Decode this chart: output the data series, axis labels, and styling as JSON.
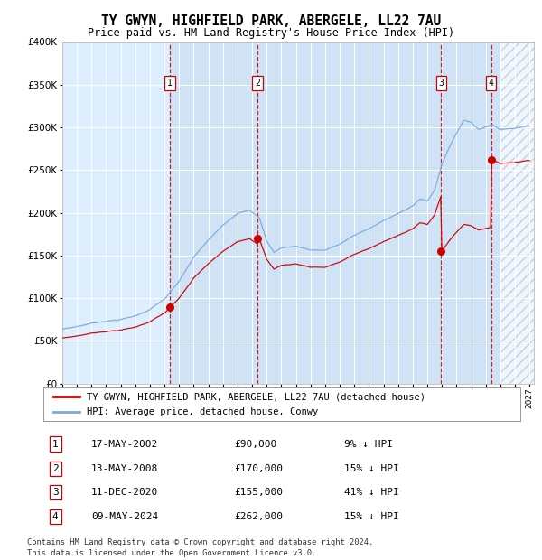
{
  "title": "TY GWYN, HIGHFIELD PARK, ABERGELE, LL22 7AU",
  "subtitle": "Price paid vs. HM Land Registry's House Price Index (HPI)",
  "hpi_color": "#7aaadd",
  "price_color": "#cc0000",
  "bg_color": "#ddeeff",
  "bg_band_color": "#c8ddf0",
  "ylim": [
    0,
    400000
  ],
  "yticks": [
    0,
    50000,
    100000,
    150000,
    200000,
    250000,
    300000,
    350000,
    400000
  ],
  "legend_label_price": "TY GWYN, HIGHFIELD PARK, ABERGELE, LL22 7AU (detached house)",
  "legend_label_hpi": "HPI: Average price, detached house, Conwy",
  "transactions": [
    {
      "num": 1,
      "date": "17-MAY-2002",
      "price": 90000,
      "pct": "9%",
      "year": 2002.37
    },
    {
      "num": 2,
      "date": "13-MAY-2008",
      "price": 170000,
      "pct": "15%",
      "year": 2008.37
    },
    {
      "num": 3,
      "date": "11-DEC-2020",
      "price": 155000,
      "pct": "41%",
      "year": 2020.95
    },
    {
      "num": 4,
      "date": "09-MAY-2024",
      "price": 262000,
      "pct": "15%",
      "year": 2024.37
    }
  ],
  "xmin": 1995,
  "xmax": 2027.3,
  "hatch_start": 2025.0,
  "footnote1": "Contains HM Land Registry data © Crown copyright and database right 2024.",
  "footnote2": "This data is licensed under the Open Government Licence v3.0."
}
